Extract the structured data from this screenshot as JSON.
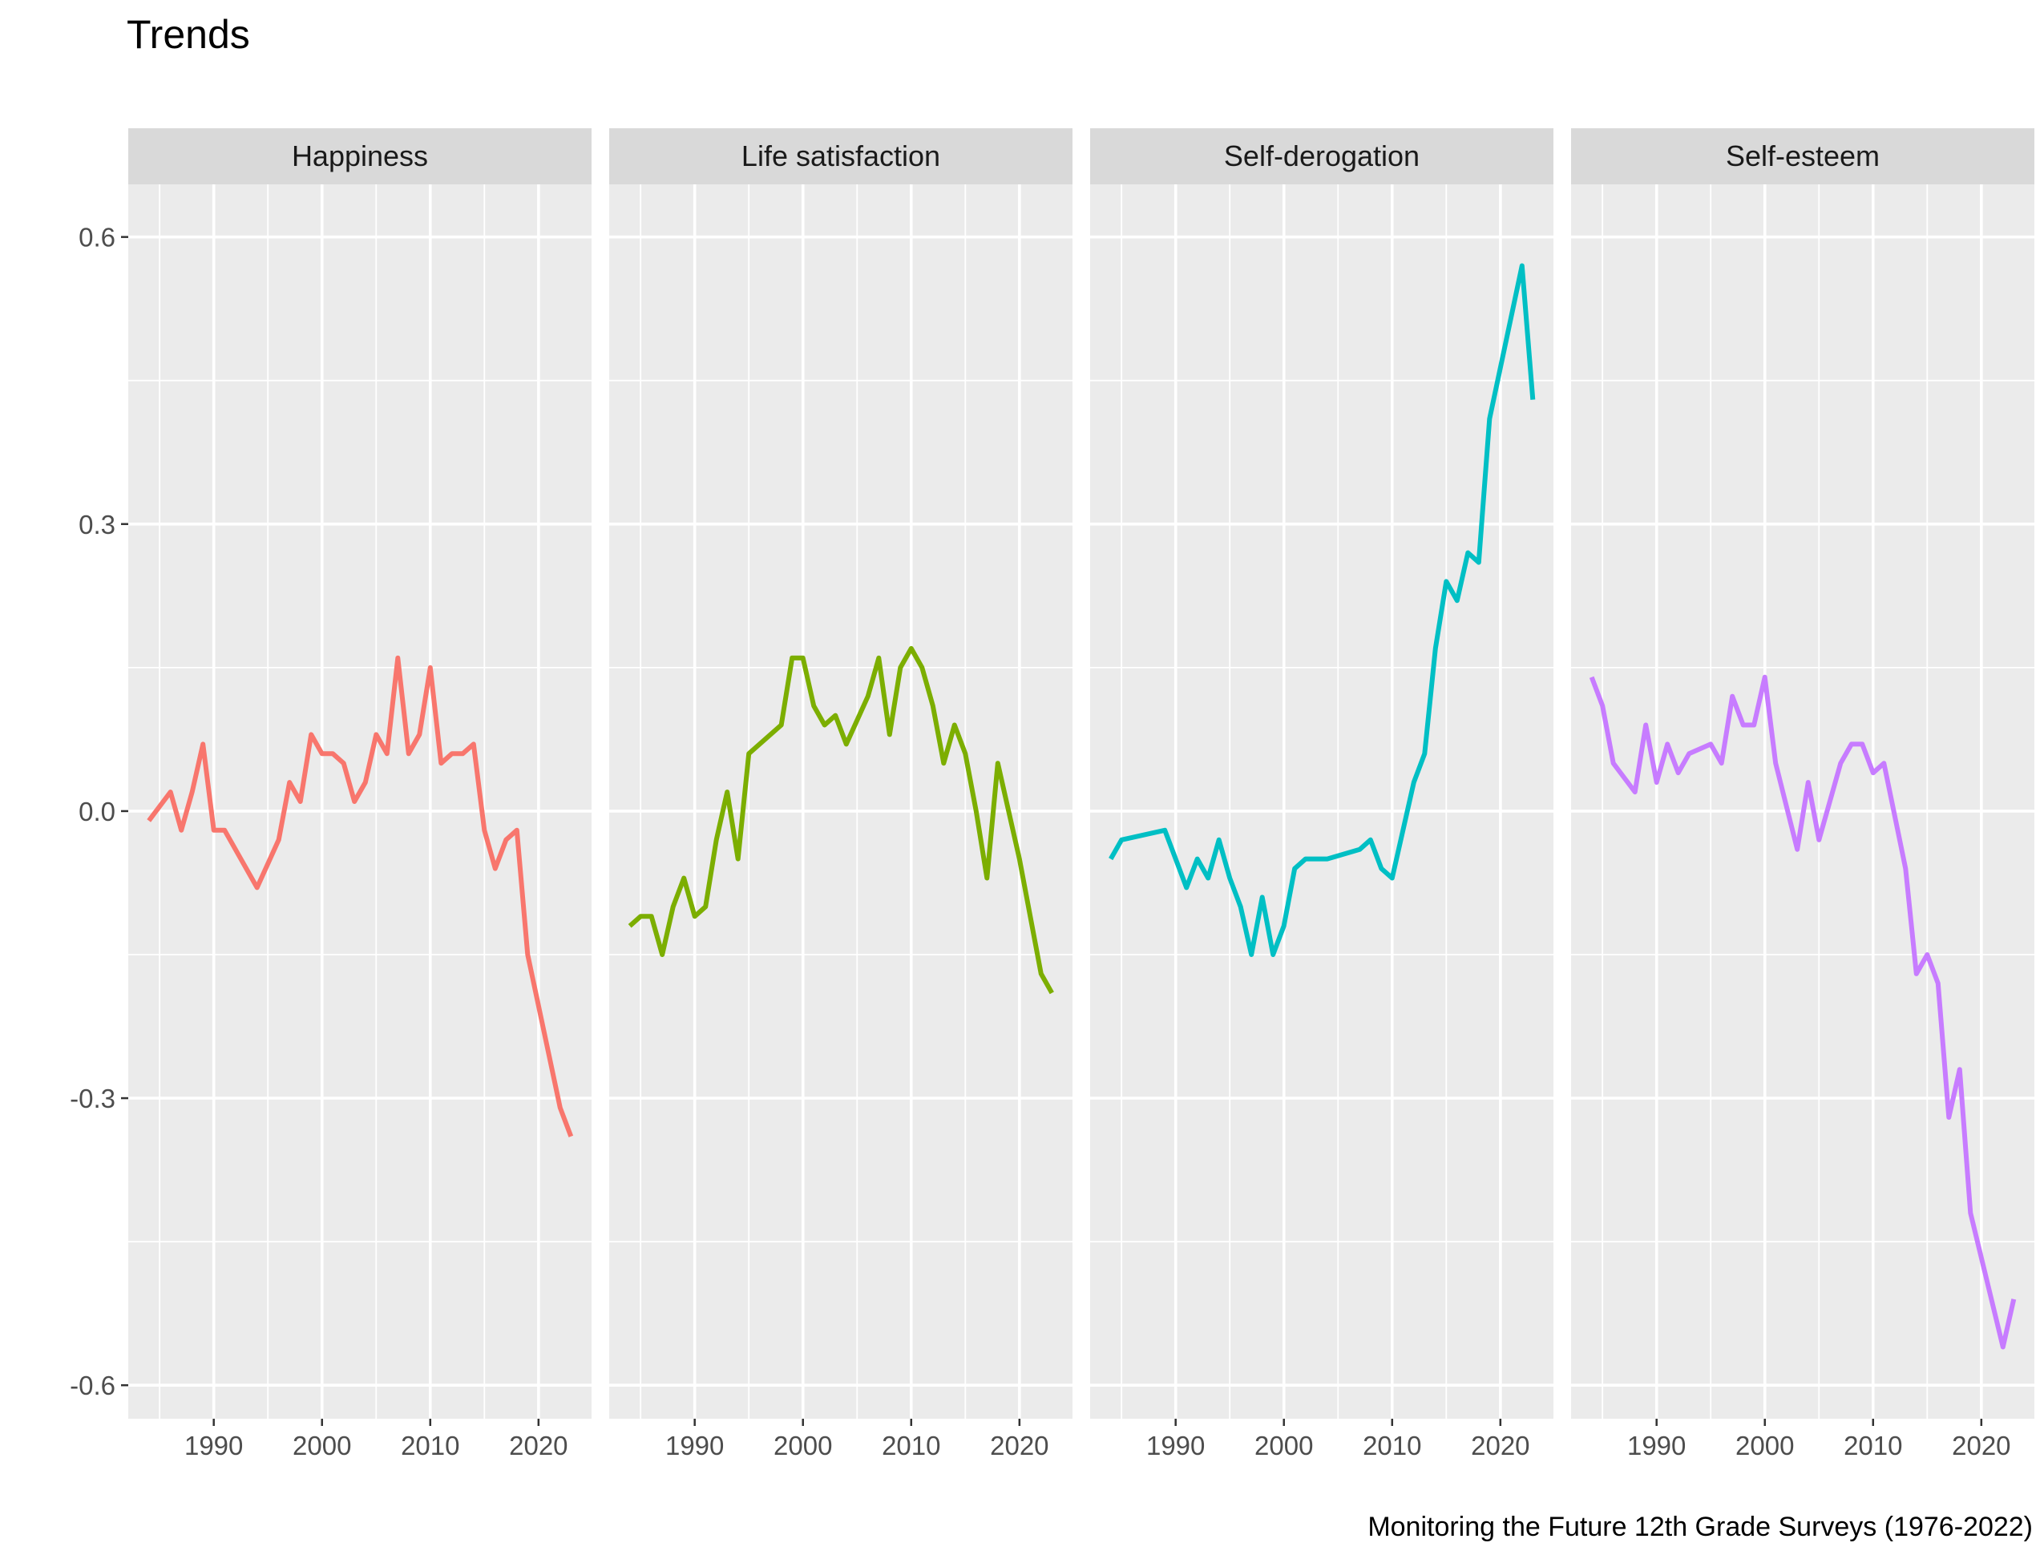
{
  "chart_data": {
    "type": "line",
    "title": "Trends",
    "caption": "Monitoring the Future 12th Grade Surveys (1976-2022)",
    "xlabel": "",
    "ylabel": "",
    "xlim": [
      1982.1,
      2024.9
    ],
    "ylim": [
      -0.635,
      0.655
    ],
    "x_ticks": [
      1990,
      2000,
      2010,
      2020
    ],
    "y_ticks": [
      -0.6,
      -0.3,
      0.0,
      0.3,
      0.6
    ],
    "y_tick_labels": [
      "-0.6",
      "-0.3",
      "0.0",
      "0.3",
      "0.6"
    ],
    "grid": true,
    "legend": "none",
    "facets": [
      {
        "name": "Happiness",
        "color": "#F8766D",
        "points": [
          [
            1984,
            -0.01
          ],
          [
            1986,
            0.02
          ],
          [
            1987,
            -0.02
          ],
          [
            1988,
            0.02
          ],
          [
            1989,
            0.07
          ],
          [
            1990,
            -0.02
          ],
          [
            1991,
            -0.02
          ],
          [
            1994,
            -0.08
          ],
          [
            1996,
            -0.03
          ],
          [
            1997,
            0.03
          ],
          [
            1998,
            0.01
          ],
          [
            1999,
            0.08
          ],
          [
            2000,
            0.06
          ],
          [
            2001,
            0.06
          ],
          [
            2002,
            0.05
          ],
          [
            2003,
            0.01
          ],
          [
            2004,
            0.03
          ],
          [
            2005,
            0.08
          ],
          [
            2006,
            0.06
          ],
          [
            2007,
            0.16
          ],
          [
            2008,
            0.06
          ],
          [
            2009,
            0.08
          ],
          [
            2010,
            0.15
          ],
          [
            2011,
            0.05
          ],
          [
            2012,
            0.06
          ],
          [
            2013,
            0.06
          ],
          [
            2014,
            0.07
          ],
          [
            2015,
            -0.02
          ],
          [
            2016,
            -0.06
          ],
          [
            2017,
            -0.03
          ],
          [
            2018,
            -0.02
          ],
          [
            2019,
            -0.15
          ],
          [
            2022,
            -0.31
          ],
          [
            2023,
            -0.34
          ]
        ]
      },
      {
        "name": "Life satisfaction",
        "color": "#7CAE00",
        "points": [
          [
            1984,
            -0.12
          ],
          [
            1985,
            -0.11
          ],
          [
            1986,
            -0.11
          ],
          [
            1987,
            -0.15
          ],
          [
            1988,
            -0.1
          ],
          [
            1989,
            -0.07
          ],
          [
            1990,
            -0.11
          ],
          [
            1991,
            -0.1
          ],
          [
            1992,
            -0.03
          ],
          [
            1993,
            0.02
          ],
          [
            1994,
            -0.05
          ],
          [
            1995,
            0.06
          ],
          [
            1998,
            0.09
          ],
          [
            1999,
            0.16
          ],
          [
            2000,
            0.16
          ],
          [
            2001,
            0.11
          ],
          [
            2002,
            0.09
          ],
          [
            2003,
            0.1
          ],
          [
            2004,
            0.07
          ],
          [
            2006,
            0.12
          ],
          [
            2007,
            0.16
          ],
          [
            2008,
            0.08
          ],
          [
            2009,
            0.15
          ],
          [
            2010,
            0.17
          ],
          [
            2011,
            0.15
          ],
          [
            2012,
            0.11
          ],
          [
            2013,
            0.05
          ],
          [
            2014,
            0.09
          ],
          [
            2015,
            0.06
          ],
          [
            2016,
            0.0
          ],
          [
            2017,
            -0.07
          ],
          [
            2018,
            0.05
          ],
          [
            2020,
            -0.05
          ],
          [
            2022,
            -0.17
          ],
          [
            2023,
            -0.19
          ]
        ]
      },
      {
        "name": "Self-derogation",
        "color": "#00BFC4",
        "points": [
          [
            1984,
            -0.05
          ],
          [
            1985,
            -0.03
          ],
          [
            1989,
            -0.02
          ],
          [
            1991,
            -0.08
          ],
          [
            1992,
            -0.05
          ],
          [
            1993,
            -0.07
          ],
          [
            1994,
            -0.03
          ],
          [
            1995,
            -0.07
          ],
          [
            1996,
            -0.1
          ],
          [
            1997,
            -0.15
          ],
          [
            1998,
            -0.09
          ],
          [
            1999,
            -0.15
          ],
          [
            2000,
            -0.12
          ],
          [
            2001,
            -0.06
          ],
          [
            2002,
            -0.05
          ],
          [
            2004,
            -0.05
          ],
          [
            2007,
            -0.04
          ],
          [
            2008,
            -0.03
          ],
          [
            2009,
            -0.06
          ],
          [
            2010,
            -0.07
          ],
          [
            2012,
            0.03
          ],
          [
            2013,
            0.06
          ],
          [
            2014,
            0.17
          ],
          [
            2015,
            0.24
          ],
          [
            2016,
            0.22
          ],
          [
            2017,
            0.27
          ],
          [
            2018,
            0.26
          ],
          [
            2019,
            0.41
          ],
          [
            2022,
            0.57
          ],
          [
            2023,
            0.43
          ]
        ]
      },
      {
        "name": "Self-esteem",
        "color": "#C77CFF",
        "points": [
          [
            1984,
            0.14
          ],
          [
            1985,
            0.11
          ],
          [
            1986,
            0.05
          ],
          [
            1988,
            0.02
          ],
          [
            1989,
            0.09
          ],
          [
            1990,
            0.03
          ],
          [
            1991,
            0.07
          ],
          [
            1992,
            0.04
          ],
          [
            1993,
            0.06
          ],
          [
            1995,
            0.07
          ],
          [
            1996,
            0.05
          ],
          [
            1997,
            0.12
          ],
          [
            1998,
            0.09
          ],
          [
            1999,
            0.09
          ],
          [
            2000,
            0.14
          ],
          [
            2001,
            0.05
          ],
          [
            2003,
            -0.04
          ],
          [
            2004,
            0.03
          ],
          [
            2005,
            -0.03
          ],
          [
            2007,
            0.05
          ],
          [
            2008,
            0.07
          ],
          [
            2009,
            0.07
          ],
          [
            2010,
            0.04
          ],
          [
            2011,
            0.05
          ],
          [
            2013,
            -0.06
          ],
          [
            2014,
            -0.17
          ],
          [
            2015,
            -0.15
          ],
          [
            2016,
            -0.18
          ],
          [
            2017,
            -0.32
          ],
          [
            2018,
            -0.27
          ],
          [
            2019,
            -0.42
          ],
          [
            2022,
            -0.56
          ],
          [
            2023,
            -0.51
          ]
        ]
      }
    ]
  }
}
